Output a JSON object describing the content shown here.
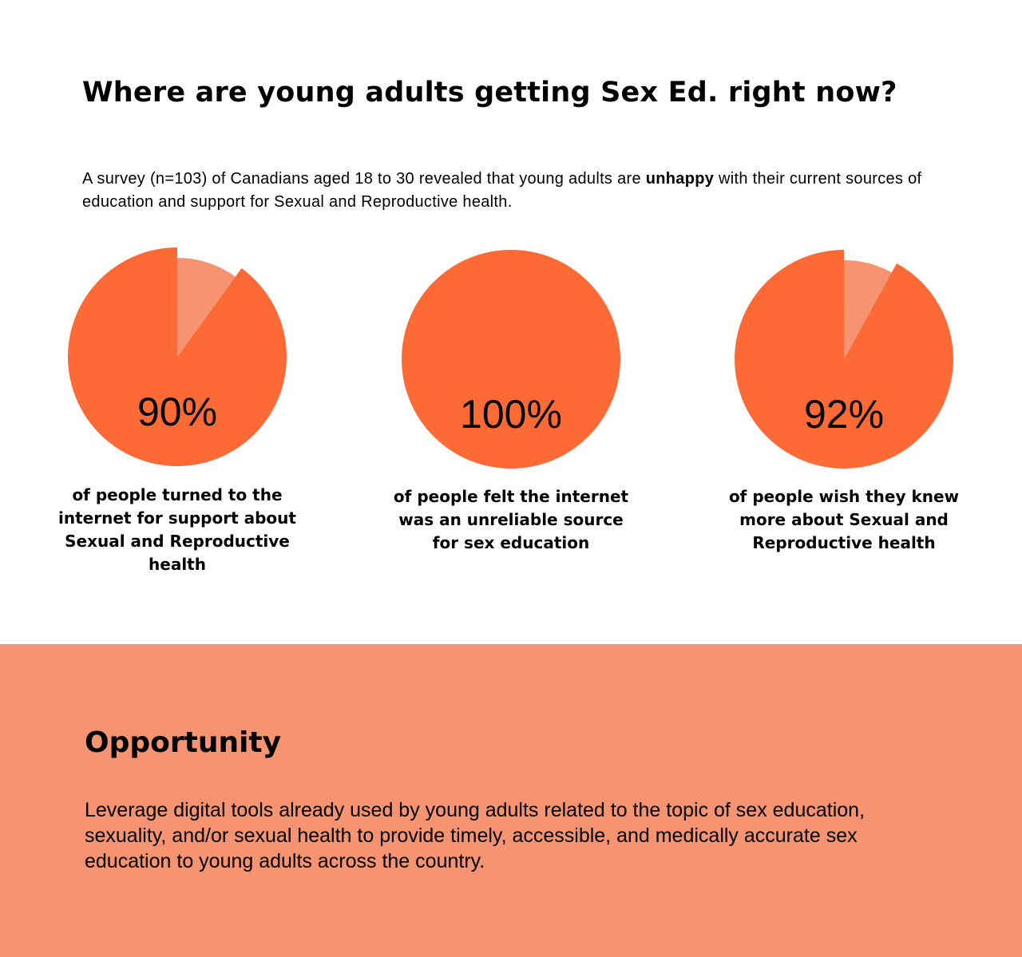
{
  "title": "Where are young adults getting Sex Ed. right now?",
  "intro": {
    "before": "A survey (n=103) of Canadians aged 18 to 30 revealed that young adults are ",
    "bold": "unhappy",
    "after": " with their current sources of education and support for Sexual and Reproductive health."
  },
  "colors": {
    "main": "#fe6a36",
    "rest": "#f69371"
  },
  "chart_data": {
    "type": "pie",
    "charts": [
      {
        "value": 90,
        "label": "90%",
        "caption": "of people turned to the internet for support about Sexual and Reproductive health"
      },
      {
        "value": 100,
        "label": "100%",
        "caption": "of people felt the internet was an unreliable source for sex education"
      },
      {
        "value": 92,
        "label": "92%",
        "caption": "of people wish they knew more about Sexual and Reproductive health"
      }
    ]
  },
  "opportunity": {
    "heading": "Opportunity",
    "body": "Leverage digital tools already used by young adults related to the topic of sex education, sexuality, and/or sexual health to provide timely, accessible, and medically accurate sex education to young adults across the country."
  }
}
